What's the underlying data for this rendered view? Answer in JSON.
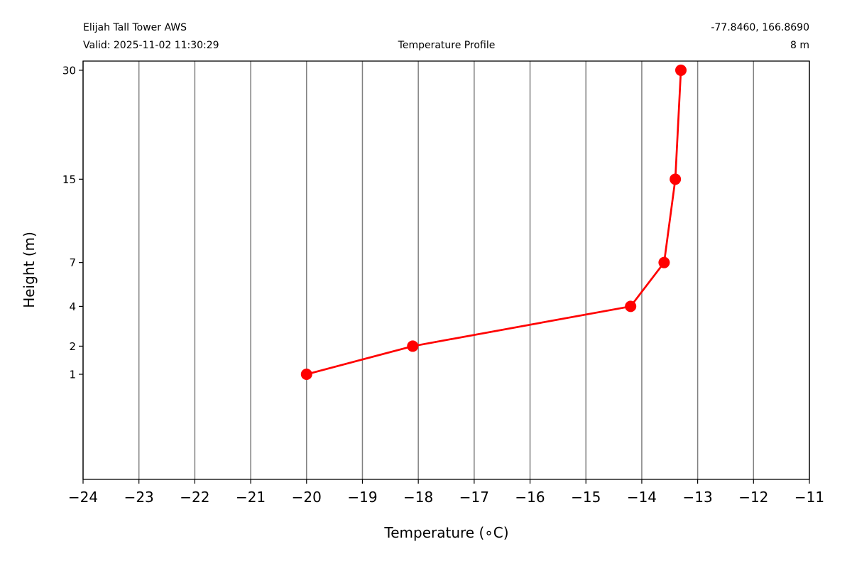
{
  "header": {
    "station": "Elijah Tall Tower AWS",
    "valid": "Valid: 2025-11-02 11:30:29",
    "title": "Temperature Profile",
    "coords": "-77.8460, 166.8690",
    "height": "8 m"
  },
  "chart_data": {
    "type": "line",
    "xlabel": "Temperature (∘C)",
    "ylabel": "Height (m)",
    "xlim": [
      -24,
      -11
    ],
    "ylim": [
      -0.3,
      31.5
    ],
    "y_scale": "sqrt",
    "xticks": [
      -24,
      -23,
      -22,
      -21,
      -20,
      -19,
      -18,
      -17,
      -16,
      -15,
      -14,
      -13,
      -12,
      -11
    ],
    "xtick_labels": [
      "−24",
      "−23",
      "−22",
      "−21",
      "−20",
      "−19",
      "−18",
      "−17",
      "−16",
      "−15",
      "−14",
      "−13",
      "−12",
      "−11"
    ],
    "yticks": [
      1,
      2,
      4,
      7,
      15,
      30
    ],
    "ytick_labels": [
      "1",
      "2",
      "4",
      "7",
      "15",
      "30"
    ],
    "grid": "vertical",
    "color": "#ff0000",
    "grid_color": "#808080",
    "x": [
      -20.0,
      -18.1,
      -14.2,
      -13.6,
      -13.4,
      -13.3
    ],
    "y": [
      1,
      2,
      4,
      7,
      15,
      30
    ]
  }
}
